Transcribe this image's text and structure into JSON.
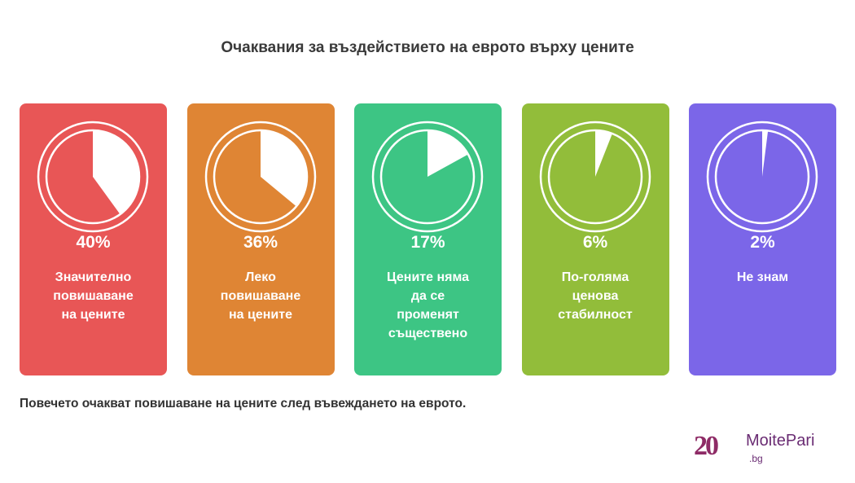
{
  "chart_data": {
    "type": "pie",
    "title": "Очаквания за въздействието на еврото върху цените",
    "subtitle": "Повечето очакват повишаване на цените след въвеждането на еврото.",
    "items": [
      {
        "value": 40,
        "label": "40%",
        "lines": [
          "Значително",
          "повишаване",
          "на цените"
        ],
        "color": "#e85656"
      },
      {
        "value": 36,
        "label": "36%",
        "lines": [
          "Леко",
          "повишаване",
          "на цените"
        ],
        "color": "#df8534"
      },
      {
        "value": 17,
        "label": "17%",
        "lines": [
          "Цените няма",
          "да се",
          "променят",
          "съществено"
        ],
        "color": "#3dc584"
      },
      {
        "value": 6,
        "label": "6%",
        "lines": [
          "По-голяма",
          "ценова",
          "стабилност"
        ],
        "color": "#92bd3a"
      },
      {
        "value": 2,
        "label": "2%",
        "lines": [
          "Не знам"
        ],
        "color": "#7b66e8"
      }
    ]
  },
  "logo": {
    "number": "20",
    "name": "MoitePari",
    "domain": ".bg"
  }
}
